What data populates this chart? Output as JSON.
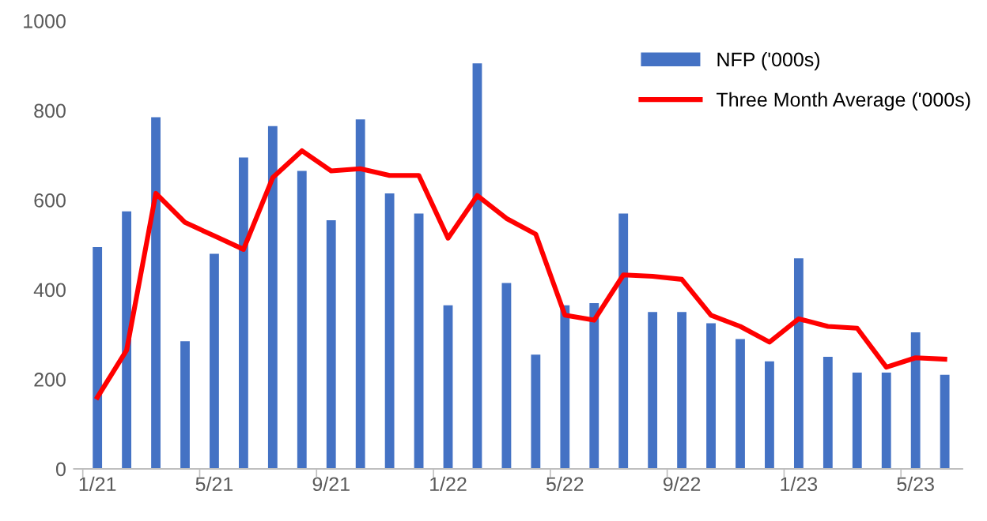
{
  "chart_data": {
    "type": "bar",
    "categories": [
      "1/21",
      null,
      null,
      null,
      "5/21",
      null,
      null,
      null,
      "9/21",
      null,
      null,
      null,
      "1/22",
      null,
      null,
      null,
      "5/22",
      null,
      null,
      null,
      "9/22",
      null,
      null,
      null,
      "1/23",
      null,
      null,
      null,
      "5/23",
      null
    ],
    "series": [
      {
        "name": "NFP ('000s)",
        "color": "#4472c4",
        "values": [
          495,
          575,
          785,
          285,
          480,
          695,
          765,
          665,
          555,
          780,
          615,
          570,
          365,
          905,
          415,
          255,
          365,
          370,
          570,
          350,
          350,
          325,
          290,
          240,
          470,
          250,
          215,
          215,
          305,
          210
        ]
      },
      {
        "name": "Three Month Average ('000s)",
        "type": "line",
        "color": "#ff0000",
        "values": [
          160,
          265,
          615,
          550,
          520,
          490,
          650,
          710,
          665,
          670,
          655,
          655,
          515,
          610,
          559,
          524,
          343,
          332,
          433,
          430,
          423,
          343,
          318,
          283,
          335,
          318,
          314,
          227,
          248,
          245
        ]
      }
    ],
    "ylim": [
      0,
      1000
    ],
    "yticks": [
      0,
      200,
      400,
      600,
      800,
      1000
    ],
    "grid": false,
    "legend": "top right",
    "marker": "none",
    "line_style": "solid"
  }
}
